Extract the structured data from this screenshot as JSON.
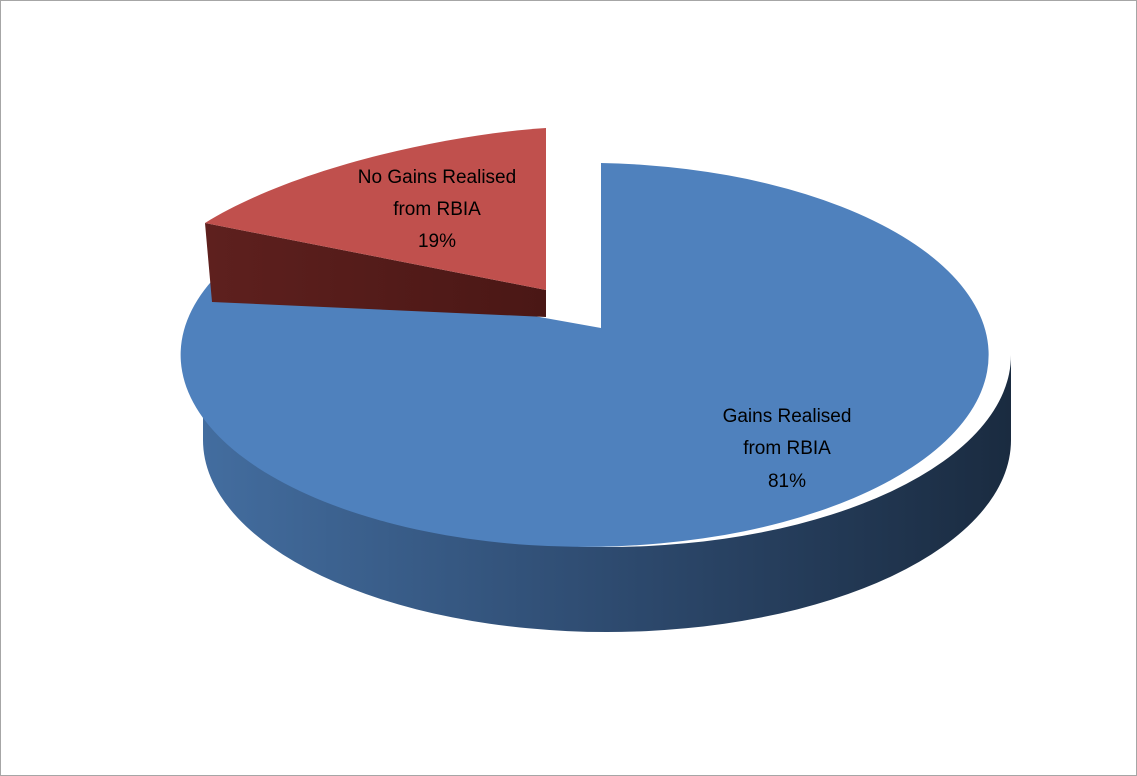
{
  "chart_data": {
    "type": "pie",
    "style": "3d-exploded",
    "slices": [
      {
        "label_line1": "Gains Realised",
        "label_line2": "from RBIA",
        "percent_label": "81%",
        "value": 81,
        "color": "#4f81bd"
      },
      {
        "label_line1": "No Gains Realised",
        "label_line2": "from RBIA",
        "percent_label": "19%",
        "value": 19,
        "color": "#c0504d"
      }
    ],
    "legend": "none",
    "data_labels": "inside"
  }
}
